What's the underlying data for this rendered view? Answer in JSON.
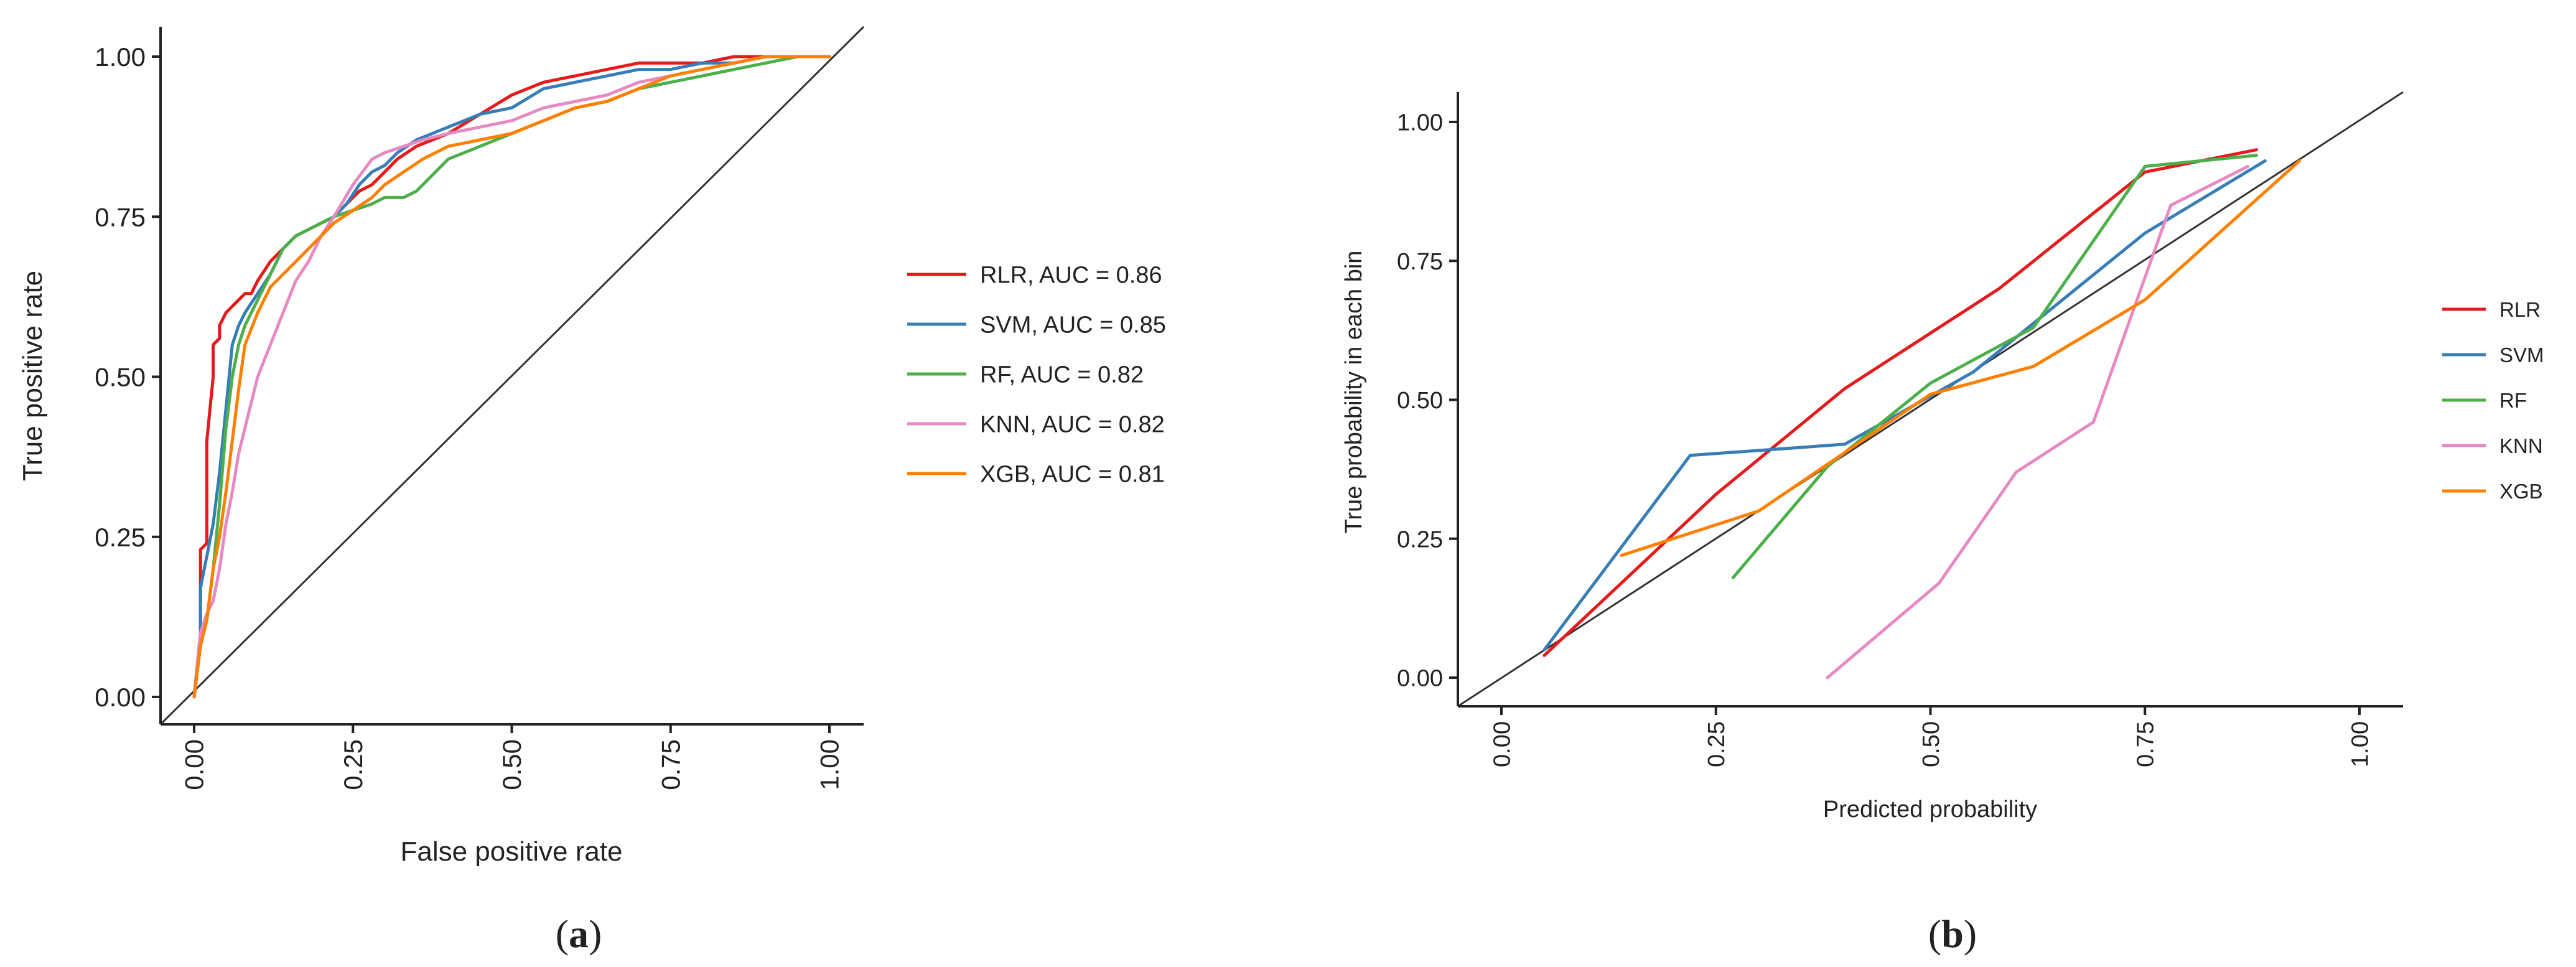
{
  "chart_data": [
    {
      "type": "line",
      "panel": "a",
      "subtype": "roc",
      "xlabel": "False positive rate",
      "ylabel": "True positive rate",
      "xlim": [
        0,
        1
      ],
      "ylim": [
        0,
        1
      ],
      "xticks": [
        "0.00",
        "0.25",
        "0.50",
        "0.75",
        "1.00"
      ],
      "yticks": [
        "0.00",
        "0.25",
        "0.50",
        "0.75",
        "1.00"
      ],
      "tick_values": [
        0,
        0.25,
        0.5,
        0.75,
        1
      ],
      "grid": false,
      "legend_position": "right",
      "reference_line": "diagonal",
      "panel_label": "a",
      "series": [
        {
          "name": "RLR, AUC = 0.86",
          "color": "#e41a1c",
          "x": [
            0,
            0.01,
            0.01,
            0.02,
            0.02,
            0.03,
            0.03,
            0.04,
            0.04,
            0.05,
            0.06,
            0.07,
            0.08,
            0.09,
            0.1,
            0.12,
            0.14,
            0.16,
            0.18,
            0.2,
            0.22,
            0.24,
            0.26,
            0.28,
            0.3,
            0.32,
            0.35,
            0.4,
            0.45,
            0.5,
            0.55,
            0.6,
            0.65,
            0.7,
            0.75,
            0.8,
            0.85,
            0.9,
            0.95,
            1.0
          ],
          "y": [
            0,
            0.1,
            0.23,
            0.24,
            0.4,
            0.5,
            0.55,
            0.56,
            0.58,
            0.6,
            0.61,
            0.62,
            0.63,
            0.63,
            0.65,
            0.68,
            0.7,
            0.72,
            0.73,
            0.74,
            0.75,
            0.77,
            0.79,
            0.8,
            0.82,
            0.84,
            0.86,
            0.88,
            0.91,
            0.94,
            0.96,
            0.97,
            0.98,
            0.99,
            0.99,
            0.99,
            1.0,
            1.0,
            1.0,
            1.0
          ]
        },
        {
          "name": "SVM, AUC = 0.85",
          "color": "#377eb8",
          "x": [
            0,
            0.01,
            0.01,
            0.02,
            0.03,
            0.04,
            0.05,
            0.06,
            0.07,
            0.08,
            0.1,
            0.12,
            0.14,
            0.16,
            0.18,
            0.2,
            0.22,
            0.24,
            0.26,
            0.28,
            0.3,
            0.32,
            0.35,
            0.4,
            0.45,
            0.5,
            0.55,
            0.6,
            0.65,
            0.7,
            0.75,
            0.8,
            0.85,
            0.9,
            0.95,
            1.0
          ],
          "y": [
            0,
            0.1,
            0.17,
            0.22,
            0.27,
            0.35,
            0.45,
            0.55,
            0.58,
            0.6,
            0.63,
            0.66,
            0.7,
            0.72,
            0.73,
            0.74,
            0.75,
            0.77,
            0.8,
            0.82,
            0.83,
            0.85,
            0.87,
            0.89,
            0.91,
            0.92,
            0.95,
            0.96,
            0.97,
            0.98,
            0.98,
            0.99,
            0.99,
            1.0,
            1.0,
            1.0
          ]
        },
        {
          "name": "RF, AUC = 0.82",
          "color": "#4daf4a",
          "x": [
            0,
            0.01,
            0.02,
            0.03,
            0.04,
            0.05,
            0.06,
            0.07,
            0.08,
            0.1,
            0.12,
            0.14,
            0.16,
            0.18,
            0.2,
            0.22,
            0.25,
            0.28,
            0.3,
            0.33,
            0.35,
            0.38,
            0.4,
            0.45,
            0.5,
            0.55,
            0.6,
            0.65,
            0.7,
            0.75,
            0.8,
            0.85,
            0.9,
            0.95,
            1.0
          ],
          "y": [
            0,
            0.08,
            0.12,
            0.2,
            0.3,
            0.42,
            0.5,
            0.55,
            0.58,
            0.62,
            0.66,
            0.7,
            0.72,
            0.73,
            0.74,
            0.75,
            0.76,
            0.77,
            0.78,
            0.78,
            0.79,
            0.82,
            0.84,
            0.86,
            0.88,
            0.9,
            0.92,
            0.93,
            0.95,
            0.96,
            0.97,
            0.98,
            0.99,
            1.0,
            1.0
          ]
        },
        {
          "name": "KNN, AUC = 0.82",
          "color": "#e78ac3",
          "x": [
            0,
            0.01,
            0.02,
            0.03,
            0.04,
            0.05,
            0.06,
            0.07,
            0.08,
            0.1,
            0.12,
            0.14,
            0.16,
            0.18,
            0.2,
            0.22,
            0.25,
            0.28,
            0.3,
            0.33,
            0.36,
            0.4,
            0.45,
            0.5,
            0.55,
            0.6,
            0.65,
            0.7,
            0.75,
            0.8,
            0.85,
            0.9,
            0.95,
            1.0
          ],
          "y": [
            0,
            0.1,
            0.13,
            0.15,
            0.2,
            0.27,
            0.32,
            0.38,
            0.42,
            0.5,
            0.55,
            0.6,
            0.65,
            0.68,
            0.72,
            0.75,
            0.8,
            0.84,
            0.85,
            0.86,
            0.87,
            0.88,
            0.89,
            0.9,
            0.92,
            0.93,
            0.94,
            0.96,
            0.97,
            0.98,
            0.99,
            1.0,
            1.0,
            1.0
          ]
        },
        {
          "name": "XGB, AUC = 0.81",
          "color": "#ff7f00",
          "x": [
            0,
            0.01,
            0.02,
            0.03,
            0.04,
            0.05,
            0.06,
            0.07,
            0.08,
            0.1,
            0.12,
            0.14,
            0.16,
            0.18,
            0.2,
            0.22,
            0.25,
            0.28,
            0.3,
            0.33,
            0.36,
            0.4,
            0.45,
            0.5,
            0.55,
            0.6,
            0.65,
            0.7,
            0.75,
            0.8,
            0.85,
            0.9,
            0.95,
            1.0
          ],
          "y": [
            0,
            0.08,
            0.12,
            0.2,
            0.25,
            0.32,
            0.4,
            0.48,
            0.55,
            0.6,
            0.64,
            0.66,
            0.68,
            0.7,
            0.72,
            0.74,
            0.76,
            0.78,
            0.8,
            0.82,
            0.84,
            0.86,
            0.87,
            0.88,
            0.9,
            0.92,
            0.93,
            0.95,
            0.97,
            0.98,
            0.99,
            1.0,
            1.0,
            1.0
          ]
        }
      ]
    },
    {
      "type": "line",
      "panel": "b",
      "subtype": "calibration",
      "xlabel": "Predicted probability",
      "ylabel": "True probability in each bin",
      "xlim": [
        0,
        1
      ],
      "ylim": [
        0,
        1
      ],
      "xticks": [
        "0.00",
        "0.25",
        "0.50",
        "0.75",
        "1.00"
      ],
      "yticks": [
        "0.00",
        "0.25",
        "0.50",
        "0.75",
        "1.00"
      ],
      "tick_values": [
        0,
        0.25,
        0.5,
        0.75,
        1
      ],
      "grid": false,
      "legend_position": "right",
      "reference_line": "diagonal",
      "panel_label": "b",
      "series": [
        {
          "name": "RLR",
          "color": "#e41a1c",
          "x": [
            0.05,
            0.25,
            0.4,
            0.58,
            0.75,
            0.88
          ],
          "y": [
            0.04,
            0.33,
            0.52,
            0.7,
            0.91,
            0.95
          ]
        },
        {
          "name": "SVM",
          "color": "#377eb8",
          "x": [
            0.05,
            0.22,
            0.4,
            0.55,
            0.75,
            0.89
          ],
          "y": [
            0.05,
            0.4,
            0.42,
            0.55,
            0.8,
            0.93
          ]
        },
        {
          "name": "RF",
          "color": "#4daf4a",
          "x": [
            0.27,
            0.38,
            0.5,
            0.62,
            0.75,
            0.88
          ],
          "y": [
            0.18,
            0.38,
            0.53,
            0.63,
            0.92,
            0.94
          ]
        },
        {
          "name": "KNN",
          "color": "#e78ac3",
          "x": [
            0.38,
            0.51,
            0.6,
            0.69,
            0.78,
            0.87
          ],
          "y": [
            0.0,
            0.17,
            0.37,
            0.46,
            0.85,
            0.92
          ]
        },
        {
          "name": "XGB",
          "color": "#ff7f00",
          "x": [
            0.14,
            0.3,
            0.5,
            0.62,
            0.75,
            0.93
          ],
          "y": [
            0.22,
            0.3,
            0.51,
            0.56,
            0.68,
            0.93
          ]
        }
      ]
    }
  ]
}
